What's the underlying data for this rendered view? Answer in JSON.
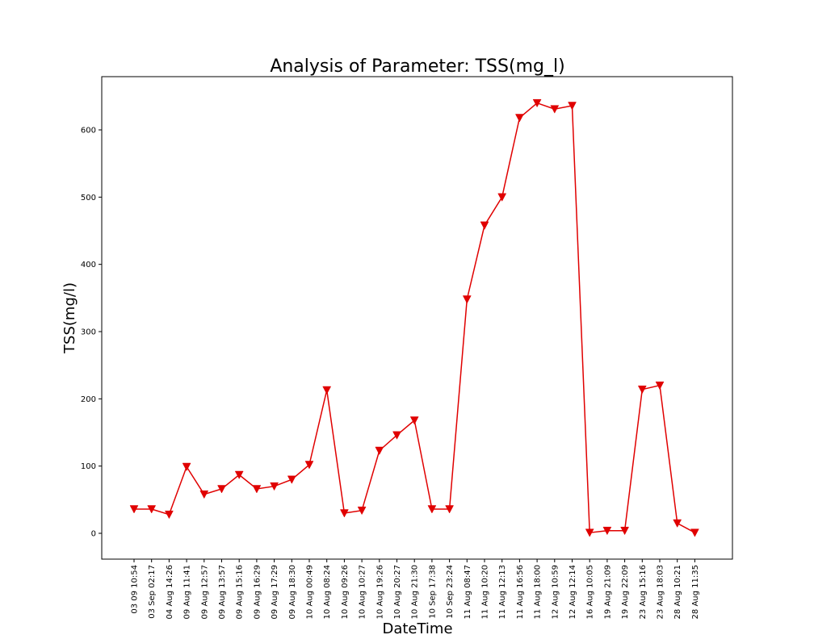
{
  "chart_data": {
    "type": "line",
    "title": "Analysis of Parameter: TSS(mg_l)",
    "xlabel": "DateTime",
    "ylabel": "TSS(mg/l)",
    "ylim": [
      -38,
      680
    ],
    "yticks": [
      0,
      100,
      200,
      300,
      400,
      500,
      600
    ],
    "grid": false,
    "legend": "none",
    "categories": [
      "03 09 10:54",
      "03 Sep 02:17",
      "04 Aug 14:26",
      "09 Aug 11:41",
      "09 Aug 12:57",
      "09 Aug 13:57",
      "09 Aug 15:16",
      "09 Aug 16:29",
      "09 Aug 17:29",
      "09 Aug 18:30",
      "10 Aug 00:49",
      "10 Aug 08:24",
      "10 Aug 09:26",
      "10 Aug 10:27",
      "10 Aug 19:26",
      "10 Aug 20:27",
      "10 Aug 21:30",
      "10 Sep 17:38",
      "10 Sep 23:24",
      "11 Aug 08:47",
      "11 Aug 10:20",
      "11 Aug 12:13",
      "11 Aug 16:56",
      "11 Aug 18:00",
      "12 Aug 10:59",
      "12 Aug 12:14",
      "16 Aug 10:05",
      "19 Aug 21:09",
      "19 Aug 22:09",
      "23 Aug 15:16",
      "23 Aug 18:03",
      "28 Aug 10:21",
      "28 Aug 11:35"
    ],
    "series": [
      {
        "values": [
          36,
          36,
          28,
          99,
          58,
          66,
          87,
          66,
          70,
          80,
          102,
          213,
          30,
          34,
          123,
          146,
          168,
          36,
          36,
          348,
          458,
          500,
          618,
          640,
          631,
          636,
          1,
          4,
          4,
          214,
          220,
          15,
          1
        ],
        "color": "#e00000",
        "marker": "triangle-down"
      }
    ]
  }
}
